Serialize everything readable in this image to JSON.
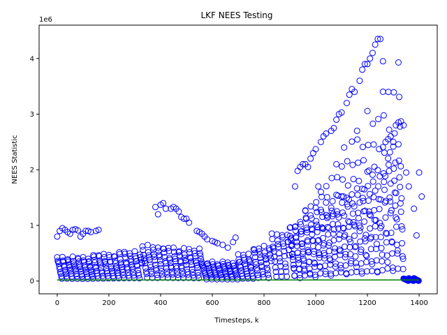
{
  "chart_data": {
    "type": "scatter",
    "title": "LKF NEES Testing",
    "xlabel": "Timesteps, k",
    "ylabel": "NEES Statistic",
    "y_offset_text": "1e6",
    "xlim": [
      -70,
      1470
    ],
    "ylim": [
      -230000,
      4600000
    ],
    "xticks": [
      0,
      200,
      400,
      600,
      800,
      1000,
      1200,
      1400
    ],
    "xtick_labels": [
      "0",
      "200",
      "400",
      "600",
      "800",
      "1000",
      "1200",
      "1400"
    ],
    "yticks": [
      0,
      1000000,
      2000000,
      3000000,
      4000000
    ],
    "ytick_labels": [
      "0",
      "1",
      "2",
      "3",
      "4"
    ],
    "grid": false,
    "marker": "open-circle",
    "marker_color": "#0000ff",
    "reference_line": {
      "color": "#008000",
      "y": [
        20000,
        20000
      ],
      "x": [
        0,
        1400
      ]
    },
    "cycle_period": 20,
    "segments": [
      {
        "x": [
          0,
          140
        ],
        "peak": 450000
      },
      {
        "x": [
          140,
          240
        ],
        "peak": 500000
      },
      {
        "x": [
          240,
          330
        ],
        "peak": 550000
      },
      {
        "x": [
          330,
          430
        ],
        "peak": 650000
      },
      {
        "x": [
          430,
          560
        ],
        "peak": 600000
      },
      {
        "x": [
          560,
          700
        ],
        "peak": 350000
      },
      {
        "x": [
          700,
          760
        ],
        "peak": 500000
      },
      {
        "x": [
          760,
          830
        ],
        "peak": 650000
      },
      {
        "x": [
          830,
          900
        ],
        "peak": 900000
      },
      {
        "x": [
          900,
          960
        ],
        "peak": 1100000
      },
      {
        "x": [
          960,
          1000
        ],
        "peak": 1300000
      },
      {
        "x": [
          1000,
          1040
        ],
        "peak": 1400000
      },
      {
        "x": [
          1040,
          1080
        ],
        "peak": 1500000
      },
      {
        "x": [
          1080,
          1120
        ],
        "peak": 1600000
      },
      {
        "x": [
          1120,
          1160
        ],
        "peak": 1700000
      },
      {
        "x": [
          1160,
          1200
        ],
        "peak": 1800000
      },
      {
        "x": [
          1200,
          1260
        ],
        "peak": 2000000
      },
      {
        "x": [
          1260,
          1340
        ],
        "peak": 2500000
      },
      {
        "x": [
          1340,
          1400
        ],
        "peak": 50000
      }
    ],
    "upper_band_points": [
      [
        0,
        800000
      ],
      [
        10,
        900000
      ],
      [
        20,
        950000
      ],
      [
        30,
        920000
      ],
      [
        40,
        880000
      ],
      [
        50,
        850000
      ],
      [
        60,
        920000
      ],
      [
        70,
        930000
      ],
      [
        80,
        910000
      ],
      [
        90,
        800000
      ],
      [
        100,
        850000
      ],
      [
        110,
        900000
      ],
      [
        120,
        900000
      ],
      [
        130,
        880000
      ],
      [
        150,
        900000
      ],
      [
        160,
        920000
      ],
      [
        380,
        1330000
      ],
      [
        390,
        1200000
      ],
      [
        400,
        1370000
      ],
      [
        410,
        1400000
      ],
      [
        420,
        1300000
      ],
      [
        440,
        1300000
      ],
      [
        450,
        1330000
      ],
      [
        460,
        1300000
      ],
      [
        470,
        1250000
      ],
      [
        480,
        1150000
      ],
      [
        490,
        1120000
      ],
      [
        500,
        1120000
      ],
      [
        510,
        1050000
      ],
      [
        540,
        900000
      ],
      [
        550,
        880000
      ],
      [
        560,
        850000
      ],
      [
        570,
        800000
      ],
      [
        580,
        750000
      ],
      [
        600,
        720000
      ],
      [
        610,
        700000
      ],
      [
        620,
        680000
      ],
      [
        640,
        650000
      ],
      [
        660,
        600000
      ],
      [
        680,
        700000
      ],
      [
        690,
        780000
      ],
      [
        920,
        1700000
      ],
      [
        930,
        1980000
      ],
      [
        940,
        2050000
      ],
      [
        950,
        2100000
      ],
      [
        960,
        2100000
      ],
      [
        970,
        2050000
      ],
      [
        980,
        2200000
      ],
      [
        990,
        2300000
      ],
      [
        1000,
        2370000
      ],
      [
        1010,
        1700000
      ],
      [
        1020,
        2500000
      ],
      [
        1030,
        2600000
      ],
      [
        1040,
        2650000
      ],
      [
        1060,
        2700000
      ],
      [
        1070,
        2750000
      ],
      [
        1080,
        2900000
      ],
      [
        1090,
        3000000
      ],
      [
        1100,
        3030000
      ],
      [
        1110,
        2400000
      ],
      [
        1120,
        3200000
      ],
      [
        1130,
        3350000
      ],
      [
        1140,
        3450000
      ],
      [
        1150,
        3400000
      ],
      [
        1160,
        2700000
      ],
      [
        1170,
        3600000
      ],
      [
        1180,
        3800000
      ],
      [
        1190,
        3900000
      ],
      [
        1200,
        3900000
      ],
      [
        1210,
        4000000
      ],
      [
        1220,
        4100000
      ],
      [
        1230,
        4250000
      ],
      [
        1240,
        4350000
      ],
      [
        1250,
        4350000
      ],
      [
        1260,
        3950000
      ],
      [
        1270,
        2500000
      ],
      [
        1280,
        2550000
      ],
      [
        1290,
        2600000
      ],
      [
        1300,
        2500000
      ],
      [
        1310,
        2800000
      ],
      [
        1320,
        2850000
      ],
      [
        1330,
        2870000
      ],
      [
        1340,
        2800000
      ],
      [
        1350,
        1950000
      ],
      [
        1360,
        1700000
      ],
      [
        1380,
        1300000
      ],
      [
        1390,
        820000
      ],
      [
        1400,
        1950000
      ],
      [
        1410,
        1520000
      ]
    ]
  }
}
